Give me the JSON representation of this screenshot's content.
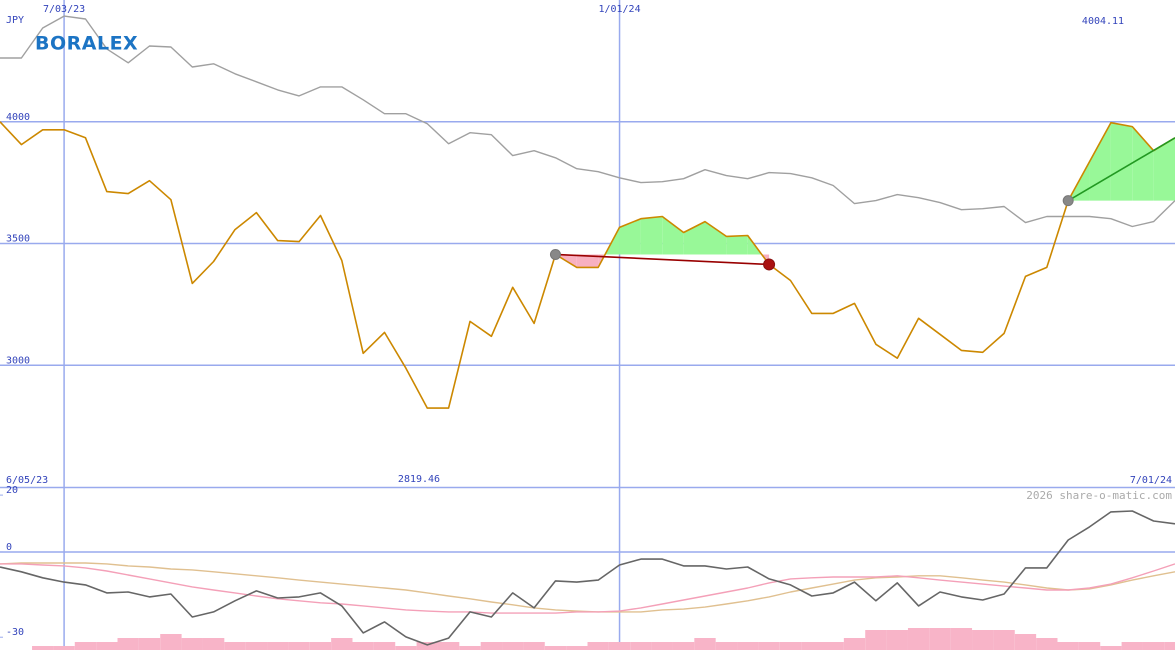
{
  "chart_data": [
    {
      "type": "line",
      "logo": "BORALEX",
      "y_label": "JPY",
      "categories": [
        "6/05/23",
        null,
        null,
        "7/03/23",
        null,
        null,
        null,
        null,
        null,
        null,
        null,
        null,
        null,
        null,
        null,
        null,
        null,
        null,
        null,
        null,
        null,
        null,
        null,
        null,
        null,
        null,
        null,
        null,
        null,
        "1/01/24",
        null,
        null,
        null,
        null,
        null,
        null,
        null,
        null,
        null,
        null,
        null,
        null,
        null,
        null,
        null,
        null,
        null,
        null,
        null,
        null,
        null,
        null,
        null,
        null,
        null,
        "7/01/24"
      ],
      "series": [
        {
          "color": "#cc8800",
          "values": [
            4000,
            3906,
            3967,
            3967,
            3934,
            3713,
            3705,
            3758,
            3680,
            3336,
            3426,
            3557,
            3627,
            3512,
            3508,
            3615,
            3430,
            3049,
            3135,
            2988,
            2824,
            2824,
            3180,
            3119,
            3320,
            3172,
            3455,
            3402,
            3402,
            3566,
            3602,
            3611,
            3545,
            3590,
            3529,
            3533,
            3414,
            3348,
            3213,
            3213,
            3254,
            3086,
            3029,
            3193,
            3127,
            3061,
            3053,
            3131,
            3365,
            3402,
            3676,
            3836,
            3996,
            3980,
            3881,
            3934
          ]
        },
        {
          "color": "#a0a0a0",
          "values": [
            4262,
            4262,
            4385,
            4434,
            4422,
            4299,
            4242,
            4311,
            4307,
            4225,
            4238,
            4197,
            4164,
            4131,
            4106,
            4143,
            4143,
            4090,
            4033,
            4033,
            3992,
            3910,
            3955,
            3947,
            3861,
            3881,
            3852,
            3807,
            3795,
            3770,
            3750,
            3754,
            3766,
            3803,
            3779,
            3766,
            3791,
            3787,
            3770,
            3738,
            3664,
            3676,
            3701,
            3688,
            3668,
            3639,
            3643,
            3652,
            3586,
            3611,
            3611,
            3611,
            3602,
            3570,
            3590,
            3676
          ]
        }
      ],
      "trades": [
        {
          "entry": 26,
          "exit": 36,
          "color": "#990000"
        },
        {
          "entry": 50,
          "exit": null,
          "color": "#229922"
        }
      ],
      "fill_up_color": "#98f898",
      "fill_down_color": "#f8b0c0",
      "annotations": [
        {
          "text": "4004.11",
          "color": "#008800"
        },
        {
          "text": "2819.46",
          "color": "#880000"
        }
      ],
      "ylim": [
        2500,
        4500
      ],
      "yticks": [
        3000,
        3500,
        4000
      ],
      "grid_color": "#99aaee"
    },
    {
      "type": "line",
      "watermark": "2026 share-o-matic.com",
      "series": [
        {
          "color": "#666666",
          "values": [
            -5.3,
            -7.0,
            -9.1,
            -10.6,
            -11.6,
            -14.4,
            -14.1,
            -15.8,
            -14.8,
            -22.9,
            -21.1,
            -17.2,
            -13.7,
            -16.2,
            -15.8,
            -14.4,
            -19.0,
            -28.5,
            -24.6,
            -29.9,
            -32.7,
            -30.3,
            -21.1,
            -22.9,
            -14.4,
            -19.7,
            -10.2,
            -10.6,
            -9.9,
            -4.6,
            -2.5,
            -2.5,
            -4.9,
            -4.9,
            -6.0,
            -5.3,
            -9.5,
            -11.6,
            -15.5,
            -14.4,
            -10.6,
            -17.2,
            -10.9,
            -19.0,
            -14.1,
            -15.8,
            -16.9,
            -14.8,
            -5.6,
            -5.6,
            4.2,
            8.8,
            14.1,
            14.4,
            10.9,
            9.9
          ]
        },
        {
          "color": "#f4a0b8",
          "values": [
            -4.2,
            -4.2,
            -4.6,
            -4.9,
            -5.6,
            -6.7,
            -8.1,
            -9.5,
            -10.9,
            -12.3,
            -13.4,
            -14.4,
            -15.5,
            -16.5,
            -17.2,
            -17.9,
            -18.3,
            -19.0,
            -19.7,
            -20.4,
            -20.8,
            -21.1,
            -21.1,
            -21.5,
            -21.5,
            -21.5,
            -21.5,
            -21.1,
            -21.1,
            -20.8,
            -19.7,
            -18.3,
            -16.9,
            -15.5,
            -14.1,
            -12.7,
            -10.9,
            -9.5,
            -9.1,
            -8.8,
            -8.8,
            -8.8,
            -8.4,
            -9.1,
            -9.9,
            -10.6,
            -11.3,
            -12.0,
            -12.7,
            -13.4,
            -13.4,
            -12.7,
            -11.3,
            -9.1,
            -6.7,
            -4.2
          ]
        },
        {
          "color": "#e0c090",
          "values": [
            -4.2,
            -3.9,
            -3.9,
            -3.9,
            -3.9,
            -4.2,
            -4.9,
            -5.3,
            -6.0,
            -6.3,
            -7.0,
            -7.7,
            -8.4,
            -9.1,
            -9.9,
            -10.6,
            -11.3,
            -12.0,
            -12.7,
            -13.4,
            -14.4,
            -15.5,
            -16.5,
            -17.6,
            -18.6,
            -19.7,
            -20.4,
            -20.8,
            -21.1,
            -21.1,
            -21.1,
            -20.4,
            -20.1,
            -19.4,
            -18.3,
            -17.2,
            -15.8,
            -14.1,
            -12.7,
            -11.3,
            -9.9,
            -9.1,
            -8.8,
            -8.4,
            -8.4,
            -9.1,
            -9.9,
            -10.6,
            -11.6,
            -12.7,
            -13.4,
            -13.0,
            -11.6,
            -9.9,
            -8.4,
            -7.0
          ]
        }
      ],
      "volume": {
        "color": "#f8b4c8",
        "values": [
          0,
          0,
          4,
          4,
          8,
          8,
          12,
          12,
          16,
          12,
          12,
          8,
          8,
          8,
          8,
          8,
          12,
          8,
          8,
          4,
          8,
          8,
          4,
          8,
          8,
          8,
          4,
          4,
          8,
          8,
          8,
          8,
          8,
          12,
          8,
          8,
          8,
          8,
          8,
          8,
          12,
          20,
          20,
          22,
          22,
          22,
          20,
          20,
          16,
          12,
          8,
          8,
          4,
          8,
          8,
          8
        ]
      },
      "ylim": [
        -34.5,
        22.5
      ],
      "yticks": [
        20,
        0,
        -30
      ],
      "zero_line": true
    }
  ]
}
